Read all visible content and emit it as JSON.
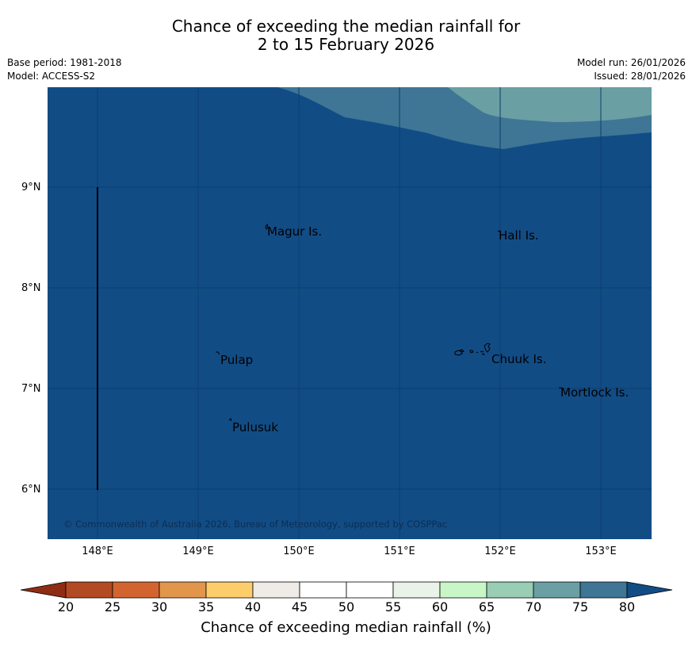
{
  "title": {
    "line1": "Chance of exceeding the median rainfall for",
    "line2": "2 to 15 February 2026"
  },
  "meta": {
    "base_period": "Base period: 1981-2018",
    "model": "Model: ACCESS-S2",
    "model_run": "Model run: 26/01/2026",
    "issued": "Issued: 28/01/2026"
  },
  "map": {
    "ocean_color": "#124c85",
    "lat_labels": [
      "9°N",
      "8°N",
      "7°N",
      "6°N"
    ],
    "lon_labels": [
      "148°E",
      "149°E",
      "150°E",
      "151°E",
      "152°E",
      "153°E"
    ],
    "places": [
      "Magur Is.",
      "Hall Is.",
      "Pulap",
      "Chuuk Is.",
      "Mortlock Is.",
      "Pulusuk"
    ],
    "copyright": "© Commonwealth of Australia 2026, Bureau of Meteorology, supported by COSPPac"
  },
  "colorbar": {
    "ticks": [
      "20",
      "25",
      "30",
      "35",
      "40",
      "45",
      "50",
      "55",
      "60",
      "65",
      "70",
      "75",
      "80"
    ],
    "colors": [
      "#8e2d14",
      "#b24a24",
      "#d2652f",
      "#e2964c",
      "#fdcd6b",
      "#efebe6",
      "#ffffff",
      "#ffffff",
      "#eaf3e8",
      "#c9f6c7",
      "#99cdb4",
      "#6a9fa3",
      "#3f7595",
      "#124c85"
    ],
    "label": "Chance of exceeding median rainfall (%)"
  }
}
